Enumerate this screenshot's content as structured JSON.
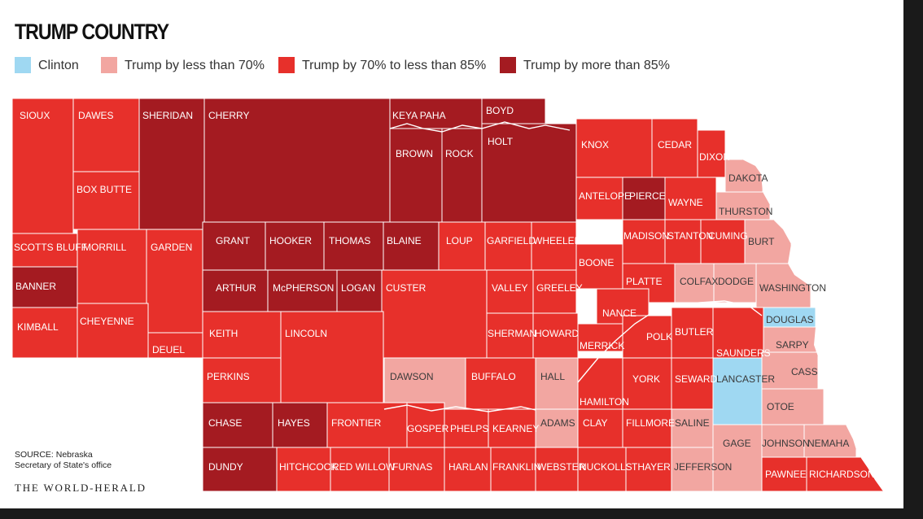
{
  "title": "TRUMP COUNTRY",
  "legend": [
    {
      "label": "Clinton",
      "color": "#9fd8f2"
    },
    {
      "label": "Trump by less than 70%",
      "color": "#f2a6a1"
    },
    {
      "label": "Trump by 70% to less than 85%",
      "color": "#e7302b"
    },
    {
      "label": "Trump by more than 85%",
      "color": "#a41b21"
    }
  ],
  "source": {
    "line1": "SOURCE: Nebraska",
    "line2": "Secretary of State's office"
  },
  "publisher": "THE WORLD-HERALD",
  "counties": [
    {
      "name": "SIOUX",
      "result": "Trump by 70% to less than 85%"
    },
    {
      "name": "DAWES",
      "result": "Trump by 70% to less than 85%"
    },
    {
      "name": "SHERIDAN",
      "result": "Trump by more than 85%"
    },
    {
      "name": "CHERRY",
      "result": "Trump by more than 85%"
    },
    {
      "name": "KEYA PAHA",
      "result": "Trump by more than 85%"
    },
    {
      "name": "BOYD",
      "result": "Trump by more than 85%"
    },
    {
      "name": "BROWN",
      "result": "Trump by more than 85%"
    },
    {
      "name": "ROCK",
      "result": "Trump by more than 85%"
    },
    {
      "name": "HOLT",
      "result": "Trump by more than 85%"
    },
    {
      "name": "KNOX",
      "result": "Trump by 70% to less than 85%"
    },
    {
      "name": "CEDAR",
      "result": "Trump by 70% to less than 85%"
    },
    {
      "name": "DIXON",
      "result": "Trump by 70% to less than 85%"
    },
    {
      "name": "DAKOTA",
      "result": "Trump by less than 70%"
    },
    {
      "name": "BOX BUTTE",
      "result": "Trump by 70% to less than 85%"
    },
    {
      "name": "ANTELOPE",
      "result": "Trump by 70% to less than 85%"
    },
    {
      "name": "PIERCE",
      "result": "Trump by more than 85%"
    },
    {
      "name": "WAYNE",
      "result": "Trump by 70% to less than 85%"
    },
    {
      "name": "THURSTON",
      "result": "Trump by less than 70%"
    },
    {
      "name": "SCOTTS BLUFF",
      "result": "Trump by 70% to less than 85%"
    },
    {
      "name": "MORRILL",
      "result": "Trump by 70% to less than 85%"
    },
    {
      "name": "GARDEN",
      "result": "Trump by 70% to less than 85%"
    },
    {
      "name": "GRANT",
      "result": "Trump by more than 85%"
    },
    {
      "name": "HOOKER",
      "result": "Trump by more than 85%"
    },
    {
      "name": "THOMAS",
      "result": "Trump by more than 85%"
    },
    {
      "name": "BLAINE",
      "result": "Trump by more than 85%"
    },
    {
      "name": "LOUP",
      "result": "Trump by 70% to less than 85%"
    },
    {
      "name": "GARFIELD",
      "result": "Trump by 70% to less than 85%"
    },
    {
      "name": "WHEELER",
      "result": "Trump by 70% to less than 85%"
    },
    {
      "name": "MADISON",
      "result": "Trump by 70% to less than 85%"
    },
    {
      "name": "STANTON",
      "result": "Trump by 70% to less than 85%"
    },
    {
      "name": "CUMING",
      "result": "Trump by 70% to less than 85%"
    },
    {
      "name": "BURT",
      "result": "Trump by less than 70%"
    },
    {
      "name": "BOONE",
      "result": "Trump by 70% to less than 85%"
    },
    {
      "name": "BANNER",
      "result": "Trump by more than 85%"
    },
    {
      "name": "ARTHUR",
      "result": "Trump by more than 85%"
    },
    {
      "name": "McPHERSON",
      "result": "Trump by more than 85%"
    },
    {
      "name": "LOGAN",
      "result": "Trump by more than 85%"
    },
    {
      "name": "CUSTER",
      "result": "Trump by 70% to less than 85%"
    },
    {
      "name": "VALLEY",
      "result": "Trump by 70% to less than 85%"
    },
    {
      "name": "GREELEY",
      "result": "Trump by 70% to less than 85%"
    },
    {
      "name": "PLATTE",
      "result": "Trump by 70% to less than 85%"
    },
    {
      "name": "COLFAX",
      "result": "Trump by less than 70%"
    },
    {
      "name": "DODGE",
      "result": "Trump by less than 70%"
    },
    {
      "name": "WASHINGTON",
      "result": "Trump by less than 70%"
    },
    {
      "name": "NANCE",
      "result": "Trump by 70% to less than 85%"
    },
    {
      "name": "DOUGLAS",
      "result": "Clinton"
    },
    {
      "name": "KIMBALL",
      "result": "Trump by 70% to less than 85%"
    },
    {
      "name": "CHEYENNE",
      "result": "Trump by 70% to less than 85%"
    },
    {
      "name": "DEUEL",
      "result": "Trump by 70% to less than 85%"
    },
    {
      "name": "KEITH",
      "result": "Trump by 70% to less than 85%"
    },
    {
      "name": "LINCOLN",
      "result": "Trump by 70% to less than 85%"
    },
    {
      "name": "SHERMAN",
      "result": "Trump by 70% to less than 85%"
    },
    {
      "name": "HOWARD",
      "result": "Trump by 70% to less than 85%"
    },
    {
      "name": "MERRICK",
      "result": "Trump by 70% to less than 85%"
    },
    {
      "name": "POLK",
      "result": "Trump by 70% to less than 85%"
    },
    {
      "name": "BUTLER",
      "result": "Trump by 70% to less than 85%"
    },
    {
      "name": "SAUNDERS",
      "result": "Trump by 70% to less than 85%"
    },
    {
      "name": "SARPY",
      "result": "Trump by less than 70%"
    },
    {
      "name": "PERKINS",
      "result": "Trump by 70% to less than 85%"
    },
    {
      "name": "DAWSON",
      "result": "Trump by less than 70%"
    },
    {
      "name": "BUFFALO",
      "result": "Trump by 70% to less than 85%"
    },
    {
      "name": "HALL",
      "result": "Trump by less than 70%"
    },
    {
      "name": "HAMILTON",
      "result": "Trump by 70% to less than 85%"
    },
    {
      "name": "YORK",
      "result": "Trump by 70% to less than 85%"
    },
    {
      "name": "SEWARD",
      "result": "Trump by 70% to less than 85%"
    },
    {
      "name": "LANCASTER",
      "result": "Clinton"
    },
    {
      "name": "CASS",
      "result": "Trump by less than 70%"
    },
    {
      "name": "OTOE",
      "result": "Trump by less than 70%"
    },
    {
      "name": "CHASE",
      "result": "Trump by more than 85%"
    },
    {
      "name": "HAYES",
      "result": "Trump by more than 85%"
    },
    {
      "name": "FRONTIER",
      "result": "Trump by 70% to less than 85%"
    },
    {
      "name": "GOSPER",
      "result": "Trump by 70% to less than 85%"
    },
    {
      "name": "PHELPS",
      "result": "Trump by 70% to less than 85%"
    },
    {
      "name": "KEARNEY",
      "result": "Trump by 70% to less than 85%"
    },
    {
      "name": "ADAMS",
      "result": "Trump by less than 70%"
    },
    {
      "name": "CLAY",
      "result": "Trump by 70% to less than 85%"
    },
    {
      "name": "FILLMORE",
      "result": "Trump by 70% to less than 85%"
    },
    {
      "name": "SALINE",
      "result": "Trump by less than 70%"
    },
    {
      "name": "GAGE",
      "result": "Trump by less than 70%"
    },
    {
      "name": "JOHNSON",
      "result": "Trump by less than 70%"
    },
    {
      "name": "NEMAHA",
      "result": "Trump by less than 70%"
    },
    {
      "name": "DUNDY",
      "result": "Trump by more than 85%"
    },
    {
      "name": "HITCHCOCK",
      "result": "Trump by 70% to less than 85%"
    },
    {
      "name": "RED WILLOW",
      "result": "Trump by 70% to less than 85%"
    },
    {
      "name": "FURNAS",
      "result": "Trump by 70% to less than 85%"
    },
    {
      "name": "HARLAN",
      "result": "Trump by 70% to less than 85%"
    },
    {
      "name": "FRANKLIN",
      "result": "Trump by 70% to less than 85%"
    },
    {
      "name": "WEBSTER",
      "result": "Trump by 70% to less than 85%"
    },
    {
      "name": "NUCKOLLS",
      "result": "Trump by 70% to less than 85%"
    },
    {
      "name": "THAYER",
      "result": "Trump by 70% to less than 85%"
    },
    {
      "name": "JEFFERSON",
      "result": "Trump by less than 70%"
    },
    {
      "name": "PAWNEE",
      "result": "Trump by 70% to less than 85%"
    },
    {
      "name": "RICHARDSON",
      "result": "Trump by 70% to less than 85%"
    }
  ]
}
